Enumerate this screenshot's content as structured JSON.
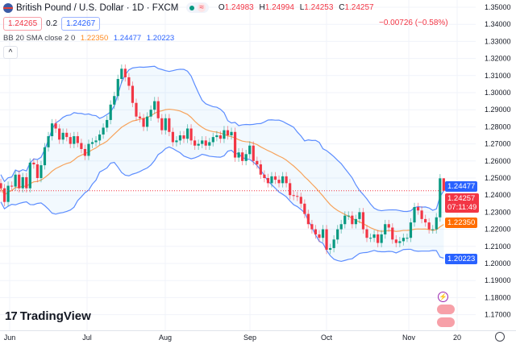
{
  "header": {
    "title": "British Pound / U.S. Dollar · 1D · FXCM",
    "ohlc": {
      "o_label": "O",
      "o": "1.24983",
      "h_label": "H",
      "h": "1.24994",
      "l_label": "L",
      "l": "1.24253",
      "c_label": "C",
      "c": "1.24257",
      "change": "−0.00726 (−0.58%)"
    },
    "sell_price": "1.24265",
    "spread": "0.2",
    "buy_price": "1.24267",
    "indicator": {
      "name": "BB 20 SMA close 2 0",
      "basis": "1.22350",
      "upper": "1.24477",
      "lower": "1.20223"
    },
    "collapse_icon": "chevron-up-icon"
  },
  "logo": "TradingView",
  "badges": {
    "upper": "1.24477",
    "price": "1.24257",
    "countdown": "07:11:49",
    "basis": "1.22350",
    "lower": "1.20223"
  },
  "colors": {
    "up": "#089981",
    "down": "#f23645",
    "bb_band": "#5c8dff",
    "bb_basis": "#f7a35c",
    "bb_fill": "#2196f3",
    "upper_badge": "#2962ff",
    "basis_badge": "#ff6d00"
  },
  "chart_data": {
    "type": "candlestick",
    "symbol": "GBPUSD",
    "interval": "1D",
    "ylim": [
      1.17,
      1.35
    ],
    "y_ticks": [
      "1.35000",
      "1.34000",
      "1.33000",
      "1.32000",
      "1.31000",
      "1.30000",
      "1.29000",
      "1.28000",
      "1.27000",
      "1.26000",
      "1.25000",
      "1.24000",
      "1.23000",
      "1.22000",
      "1.21000",
      "1.20000",
      "1.19000",
      "1.18000",
      "1.17000"
    ],
    "x_ticks": [
      "Jun",
      "Jul",
      "Aug",
      "Sep",
      "Oct",
      "Nov",
      "20"
    ],
    "grid": true,
    "indicator": "Bollinger Bands (20, SMA, close, 2)",
    "closes": [
      1.244,
      1.236,
      1.2455,
      1.245,
      1.252,
      1.244,
      1.2505,
      1.244,
      1.259,
      1.258,
      1.25,
      1.2575,
      1.268,
      1.2745,
      1.282,
      1.279,
      1.2725,
      1.2765,
      1.274,
      1.27,
      1.2745,
      1.2705,
      1.267,
      1.263,
      1.27,
      1.271,
      1.272,
      1.2755,
      1.2795,
      1.284,
      1.293,
      1.298,
      1.308,
      1.314,
      1.309,
      1.304,
      1.294,
      1.286,
      1.285,
      1.28,
      1.286,
      1.29,
      1.295,
      1.285,
      1.278,
      1.285,
      1.277,
      1.271,
      1.272,
      1.275,
      1.273,
      1.279,
      1.272,
      1.269,
      1.27,
      1.272,
      1.269,
      1.271,
      1.274,
      1.275,
      1.273,
      1.278,
      1.275,
      1.277,
      1.262,
      1.265,
      1.26,
      1.264,
      1.269,
      1.26,
      1.258,
      1.252,
      1.25,
      1.247,
      1.251,
      1.249,
      1.247,
      1.251,
      1.247,
      1.24,
      1.2395,
      1.239,
      1.235,
      1.229,
      1.223,
      1.22,
      1.217,
      1.215,
      1.22,
      1.208,
      1.209,
      1.214,
      1.22,
      1.223,
      1.228,
      1.228,
      1.223,
      1.226,
      1.23,
      1.22,
      1.215,
      1.215,
      1.217,
      1.212,
      1.217,
      1.223,
      1.221,
      1.214,
      1.212,
      1.213,
      1.215,
      1.215,
      1.224,
      1.233,
      1.231,
      1.226,
      1.224,
      1.22,
      1.22,
      1.227,
      1.24983,
      1.24257
    ],
    "last_candle": {
      "open": 1.24983,
      "high": 1.24994,
      "low": 1.24253,
      "close": 1.24257
    }
  }
}
